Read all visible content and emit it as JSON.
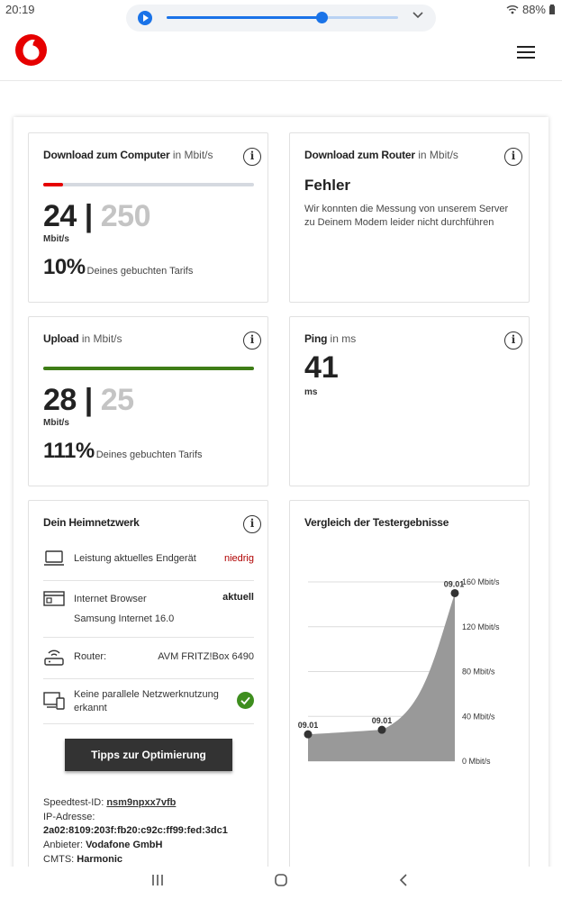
{
  "status": {
    "time": "20:19",
    "battery": "88%"
  },
  "media": {
    "progress": 0.67
  },
  "header": {
    "brand": "Vodafone"
  },
  "download_computer": {
    "title": "Download zum Computer",
    "unit_label": "in Mbit/s",
    "measured": "24",
    "sep": "|",
    "booked": "250",
    "unit": "Mbit/s",
    "percent": "10%",
    "percent_text": "Deines gebuchten Tarifs",
    "bar_fraction": 0.096,
    "bar_color": "#e60000"
  },
  "download_router": {
    "title": "Download zum Router",
    "unit_label": "in Mbit/s",
    "error_title": "Fehler",
    "error_text": "Wir konnten die Messung von unserem Server zu Deinem Modem leider nicht durchführen"
  },
  "upload": {
    "title": "Upload",
    "unit_label": "in Mbit/s",
    "measured": "28",
    "sep": "|",
    "booked": "25",
    "unit": "Mbit/s",
    "percent": "111%",
    "percent_text": "Deines gebuchten Tarifs",
    "bar_fraction": 1.0,
    "bar_color": "#3e7d16"
  },
  "ping": {
    "title": "Ping",
    "unit_label": "in ms",
    "value": "41",
    "unit": "ms"
  },
  "home_network": {
    "title": "Dein Heimnetzwerk",
    "rows": [
      {
        "label": "Leistung aktuelles Endgerät",
        "status": "niedrig",
        "icon": "laptop-icon"
      },
      {
        "label": "Internet Browser",
        "status": "aktuell",
        "sub": "Samsung Internet 16.0",
        "icon": "browser-icon"
      },
      {
        "label": "Router:",
        "status": "AVM FRITZ!Box 6490",
        "icon": "router-icon"
      },
      {
        "label": "Keine parallele Netzwerknutzung erkannt",
        "status": "check",
        "icon": "devices-icon"
      }
    ],
    "button": "Tipps zur Optimierung",
    "speedtest_id_label": "Speedtest-ID:",
    "speedtest_id": "nsm9npxx7vfb",
    "ip_label": "IP-Adresse:",
    "ip": "2a02:8109:203f:fb20:c92c:ff99:fed:3dc1",
    "provider_label": "Anbieter:",
    "provider": "Vodafone GmbH",
    "cmts_label": "CMTS:",
    "cmts": "Harmonic"
  },
  "comparison": {
    "title": "Vergleich der Testergebnisse"
  },
  "chart_data": {
    "type": "area",
    "title": "Vergleich der Testergebnisse",
    "x": [
      "09.01",
      "09.01",
      "09.01"
    ],
    "values": [
      24,
      28,
      150
    ],
    "point_labels": [
      "09.01",
      "09.01",
      "09.01"
    ],
    "y_ticks": [
      "160 Mbit/s",
      "120 Mbit/s",
      "80 Mbit/s",
      "40 Mbit/s",
      "0 Mbit/s"
    ],
    "ylim": [
      0,
      160
    ],
    "grid": true,
    "fill_color": "#999999"
  }
}
